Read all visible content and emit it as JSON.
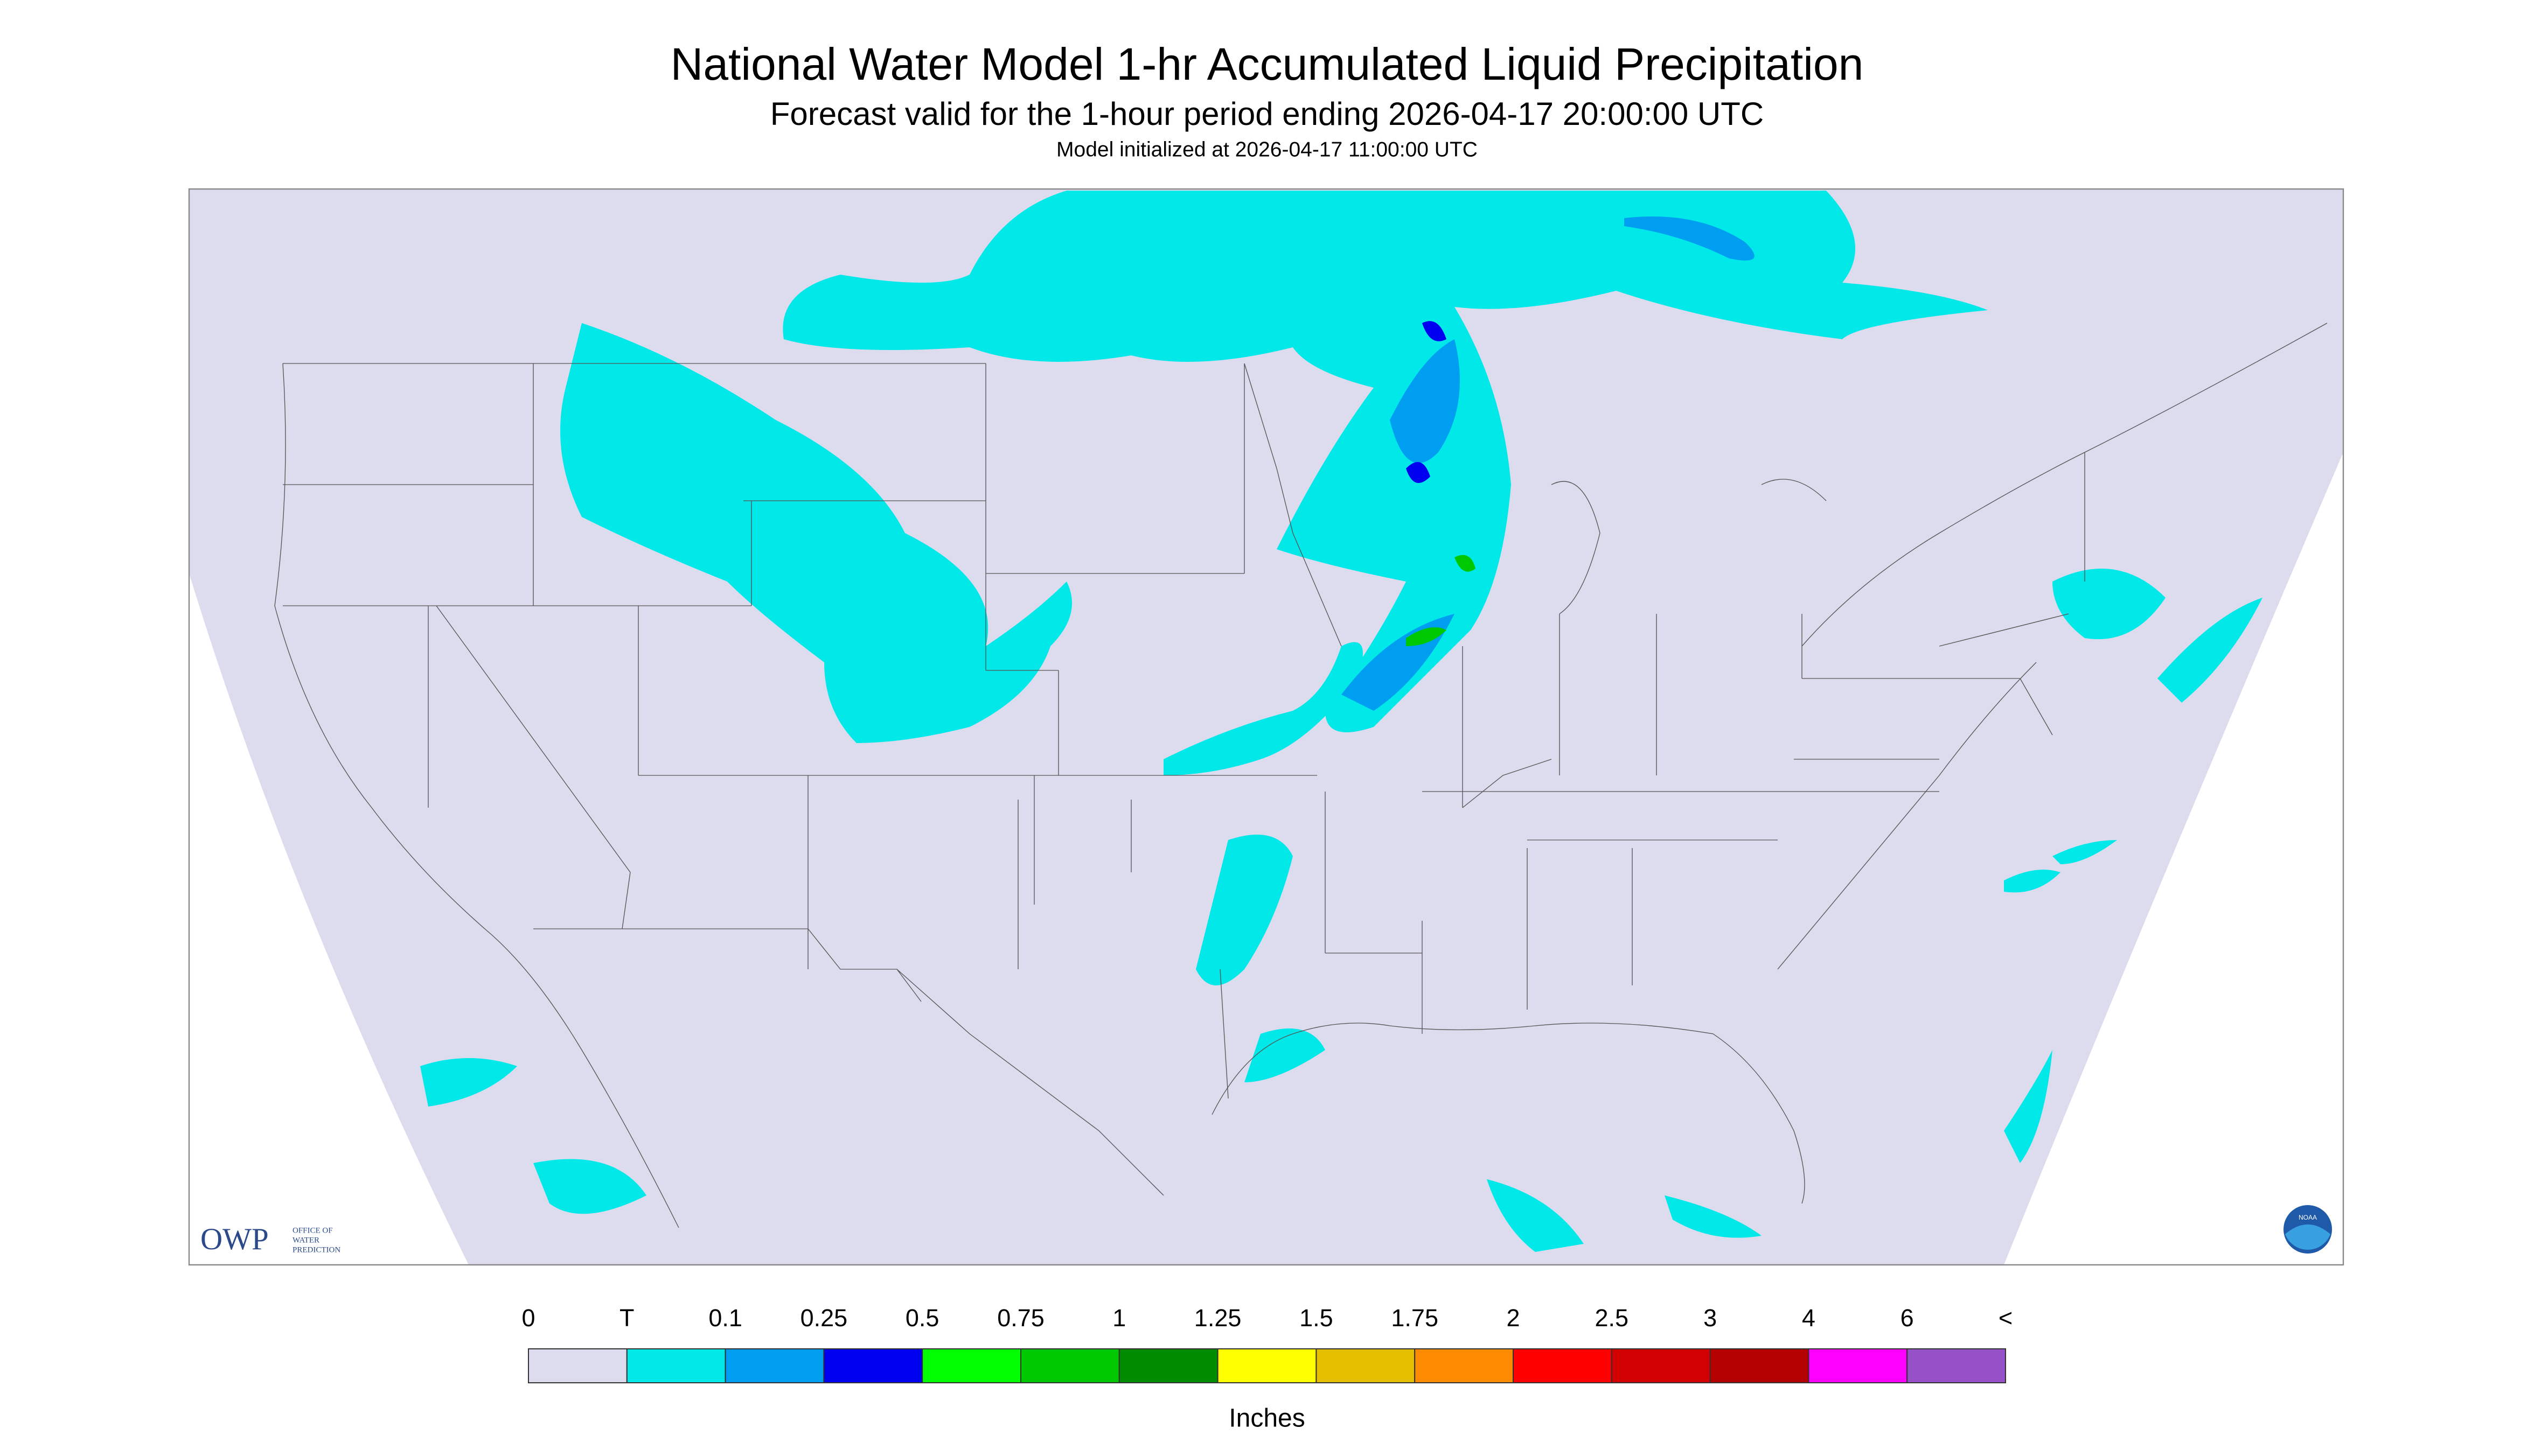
{
  "header": {
    "title": "National Water Model 1-hr Accumulated Liquid Precipitation",
    "subtitle": "Forecast valid for the 1-hour period ending 2026-04-17 20:00:00 UTC",
    "initialized": "Model initialized at 2026-04-17 11:00:00 UTC"
  },
  "logo": {
    "abbr": "OWP",
    "line1": "OFFICE OF",
    "line2": "WATER",
    "line3": "PREDICTION",
    "noaa": "NOAA"
  },
  "legend": {
    "labels": [
      "0",
      "T",
      "0.1",
      "0.25",
      "0.5",
      "0.75",
      "1",
      "1.25",
      "1.5",
      "1.75",
      "2",
      "2.5",
      "3",
      "4",
      "6",
      "<"
    ],
    "colors": [
      "#dcdcee",
      "#00e8e8",
      "#009ef0",
      "#0000f0",
      "#00ff00",
      "#00c800",
      "#008c00",
      "#ffff00",
      "#e6be00",
      "#ff8c00",
      "#ff0000",
      "#d20000",
      "#b40000",
      "#ff00ff",
      "#9650c8"
    ],
    "units": "Inches"
  }
}
